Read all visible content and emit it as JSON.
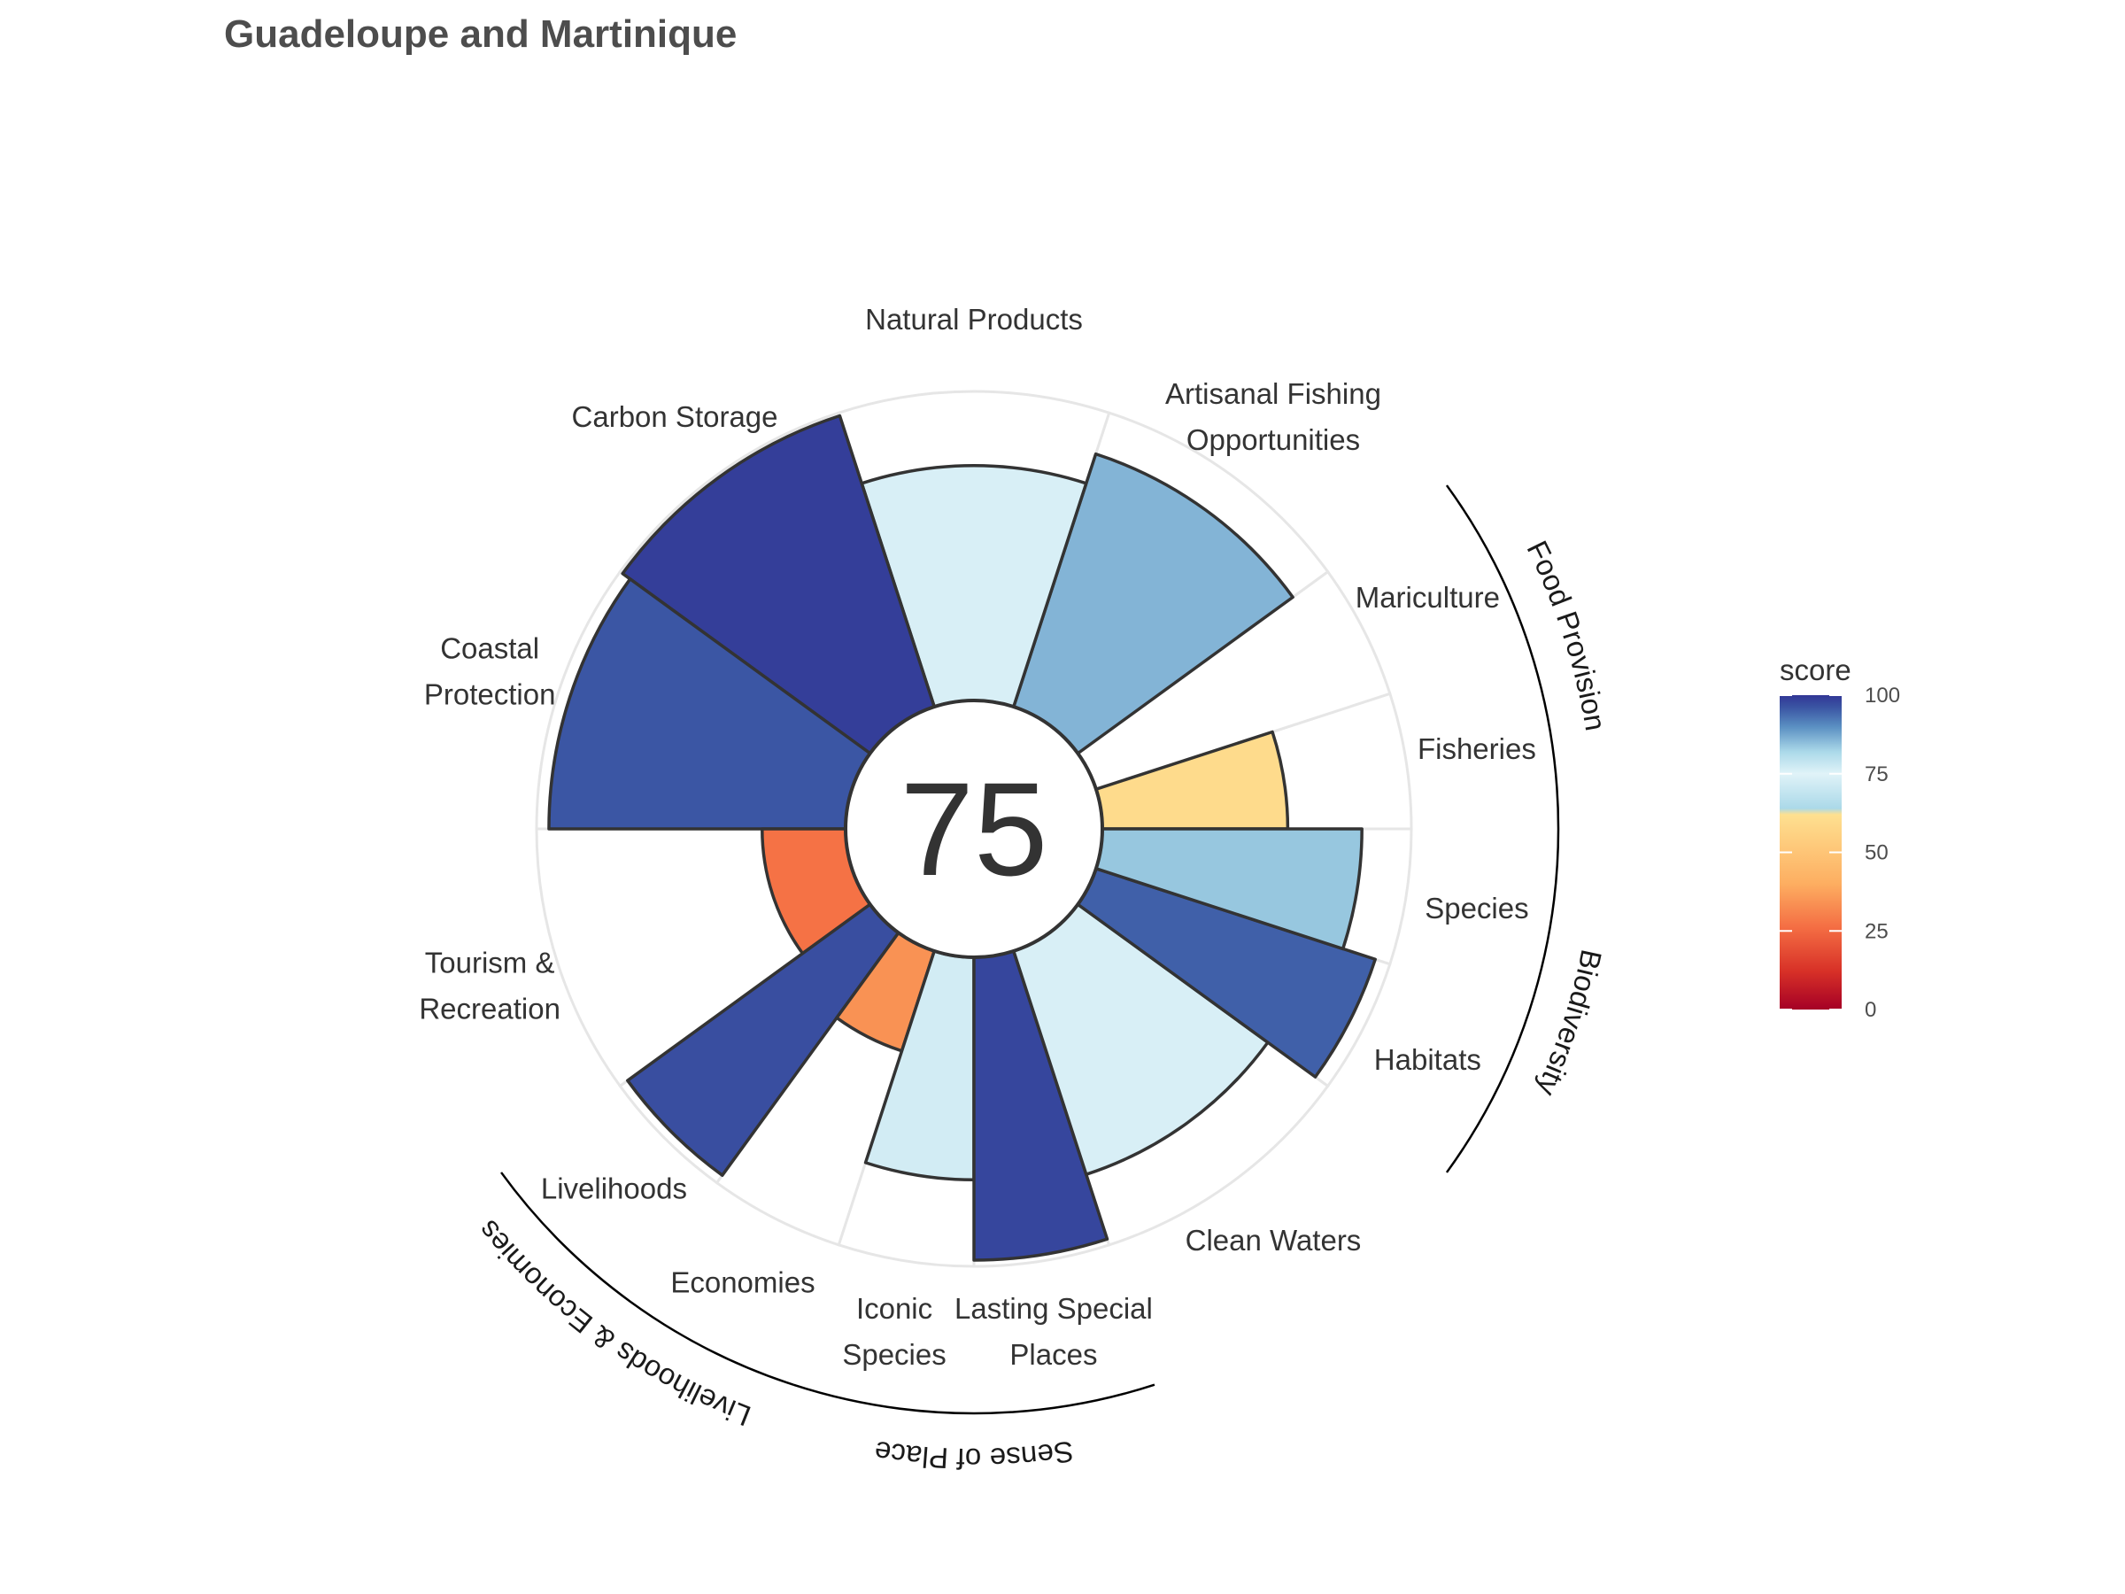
{
  "chart_data": {
    "type": "flower",
    "title": "Guadeloupe and Martinique",
    "center_score": "75",
    "petals": [
      {
        "label": [
          "Fisheries"
        ],
        "score": 60,
        "weight": 0.5
      },
      {
        "label": [
          "Mariculture"
        ],
        "score": 0,
        "weight": 0.5
      },
      {
        "label": [
          "Artisanal Fishing",
          "Opportunities"
        ],
        "score": 86,
        "weight": 1
      },
      {
        "label": [
          "Natural Products"
        ],
        "score": 76,
        "weight": 1
      },
      {
        "label": [
          "Carbon Storage"
        ],
        "score": 99,
        "weight": 1
      },
      {
        "label": [
          "Coastal",
          "Protection"
        ],
        "score": 96,
        "weight": 1
      },
      {
        "label": [
          "Tourism &",
          "Recreation"
        ],
        "score": 27,
        "weight": 1
      },
      {
        "label": [
          "Livelihoods"
        ],
        "score": 97,
        "weight": 0.5
      },
      {
        "label": [
          "Economies"
        ],
        "score": 34,
        "weight": 0.5
      },
      {
        "label": [
          "Iconic",
          "Species"
        ],
        "score": 72,
        "weight": 0.5
      },
      {
        "label": [
          "Lasting Special",
          "Places"
        ],
        "score": 98,
        "weight": 0.5
      },
      {
        "label": [
          "Clean Waters"
        ],
        "score": 76,
        "weight": 1
      },
      {
        "label": [
          "Habitats"
        ],
        "score": 95,
        "weight": 0.5
      },
      {
        "label": [
          "Species"
        ],
        "score": 84,
        "weight": 0.5
      }
    ],
    "goal_groups": [
      {
        "label": "Food Provision",
        "first": 0,
        "last": 1
      },
      {
        "label": "Biodiversity",
        "first": 12,
        "last": 13
      },
      {
        "label": "Sense of Place",
        "first": 9,
        "last": 10
      },
      {
        "label": "Livelihoods & Economies",
        "first": 7,
        "last": 8
      }
    ],
    "legend": {
      "title": "score",
      "ticks": [
        0,
        25,
        50,
        75,
        100
      ],
      "colors": [
        "#a50026",
        "#d73027",
        "#f46d43",
        "#fdae61",
        "#fee090",
        "#e0f3f8",
        "#abd9e9",
        "#74add1",
        "#4575b4",
        "#313695"
      ]
    },
    "ylim": [
      0,
      100
    ]
  }
}
